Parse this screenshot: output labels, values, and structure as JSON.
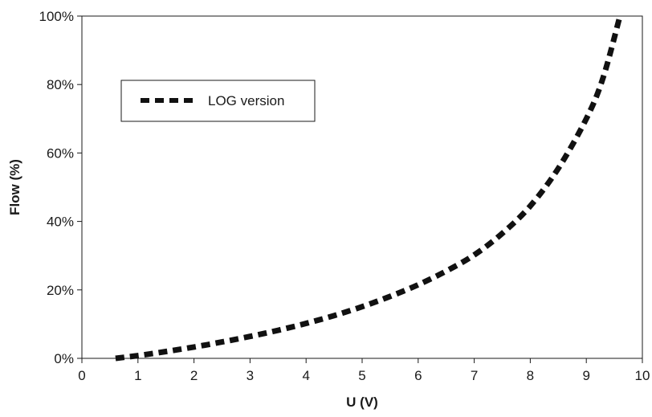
{
  "chart_data": {
    "type": "line",
    "xlabel": "U (V)",
    "ylabel": "Flow (%)",
    "xlim": [
      0,
      10
    ],
    "ylim": [
      0,
      100
    ],
    "x_ticks": [
      "0",
      "1",
      "2",
      "3",
      "4",
      "5",
      "6",
      "7",
      "8",
      "9",
      "10"
    ],
    "y_ticks": [
      "0%",
      "20%",
      "40%",
      "60%",
      "80%",
      "100%"
    ],
    "grid": false,
    "legend_position": "top-left",
    "series": [
      {
        "name": "LOG version",
        "style": "dashed",
        "color": "#111111",
        "x": [
          0.6,
          1,
          1.5,
          2,
          2.5,
          3,
          3.5,
          4,
          4.5,
          5,
          5.5,
          6,
          6.5,
          7,
          7.5,
          8,
          8.5,
          9,
          9.3,
          9.6
        ],
        "y": [
          0,
          0.8,
          2,
          3.3,
          4.8,
          6.4,
          8.2,
          10.2,
          12.5,
          15.1,
          18.1,
          21.5,
          25.5,
          30.2,
          36.5,
          44.5,
          55.5,
          70,
          82,
          100
        ]
      }
    ]
  }
}
